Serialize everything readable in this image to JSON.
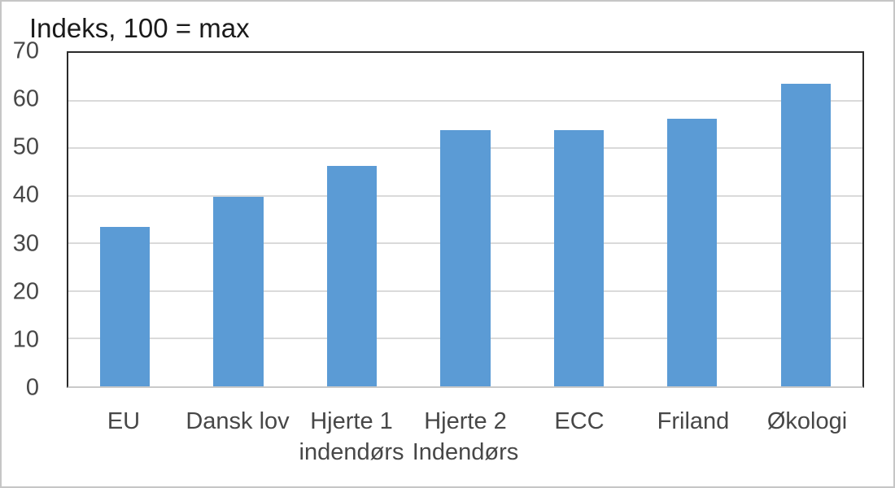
{
  "chart_data": {
    "type": "bar",
    "title": "Indeks, 100 = max",
    "categories": [
      "EU",
      "Dansk lov",
      "Hjerte 1\nindendørs",
      "Hjerte 2\nIndendørs",
      "ECC",
      "Friland",
      "Økologi"
    ],
    "values": [
      33.5,
      39.7,
      46.2,
      53.7,
      53.7,
      56.2,
      63.6
    ],
    "xlabel": "",
    "ylabel": "",
    "ylim": [
      0,
      70
    ],
    "yticks": [
      0,
      10,
      20,
      30,
      40,
      50,
      60,
      70
    ],
    "grid": "horizontal",
    "legend": "none",
    "bar_color": "#5B9BD5"
  },
  "colors": {
    "bar": "#5B9BD5",
    "gridline": "#DADADA",
    "plot_border": "#2A2A2A",
    "axis_bottom_line": "#C9C9C9",
    "axis_text": "#474747",
    "title_text": "#1A1A1A",
    "outer_border": "#C6C6C6",
    "background": "#FFFFFF"
  }
}
